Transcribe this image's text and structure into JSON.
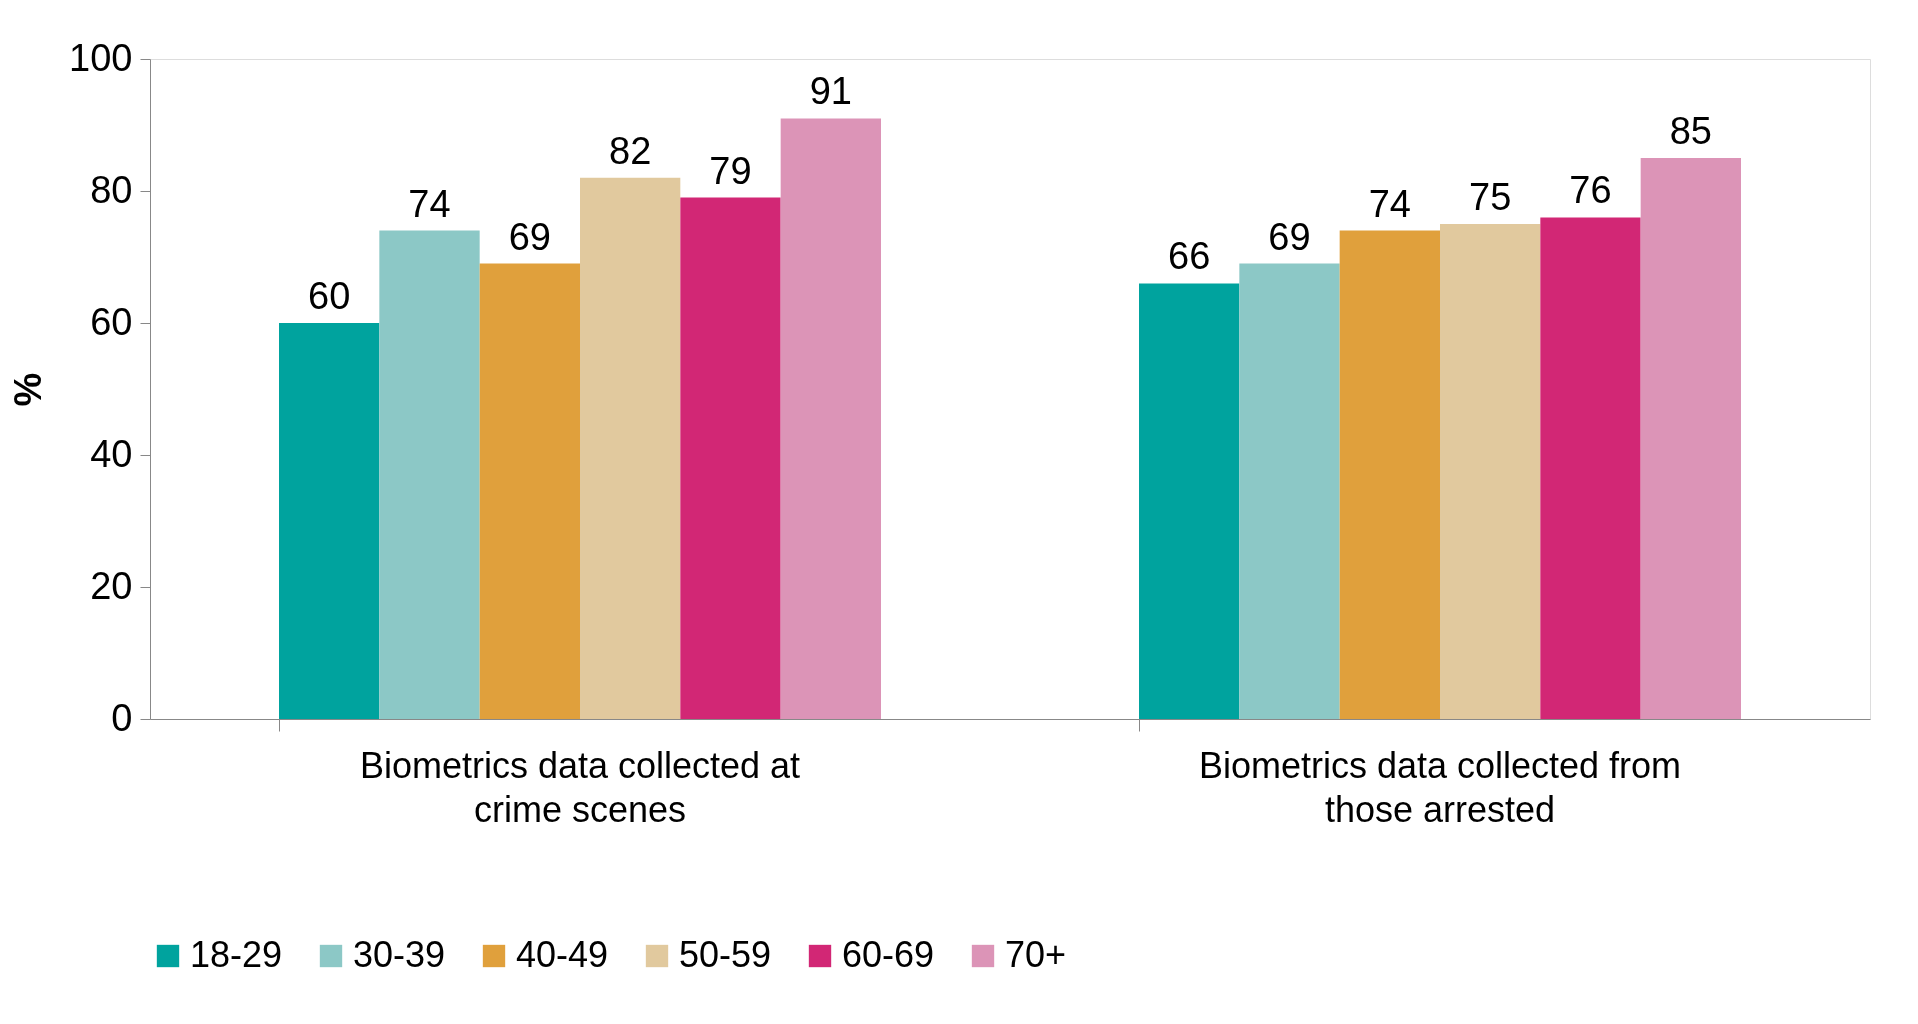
{
  "chart_data": {
    "type": "bar",
    "ylabel": "%",
    "categories": [
      "Biometrics data collected at crime scenes",
      "Biometrics data collected from those arrested"
    ],
    "series": [
      {
        "name": "18-29",
        "color": "#00a39e",
        "values": [
          60,
          66
        ]
      },
      {
        "name": "30-39",
        "color": "#8cc8c6",
        "values": [
          74,
          69
        ]
      },
      {
        "name": "40-49",
        "color": "#e0a03c",
        "values": [
          69,
          74
        ]
      },
      {
        "name": "50-59",
        "color": "#e1c99e",
        "values": [
          82,
          75
        ]
      },
      {
        "name": "60-69",
        "color": "#d22775",
        "values": [
          79,
          76
        ]
      },
      {
        "name": "70+",
        "color": "#dc94b7",
        "values": [
          91,
          85
        ]
      }
    ],
    "ylim": [
      0,
      100
    ],
    "yticks": [
      0,
      20,
      40,
      60,
      80,
      100
    ],
    "data_labels": true,
    "grid": false,
    "legend": "bottom"
  }
}
